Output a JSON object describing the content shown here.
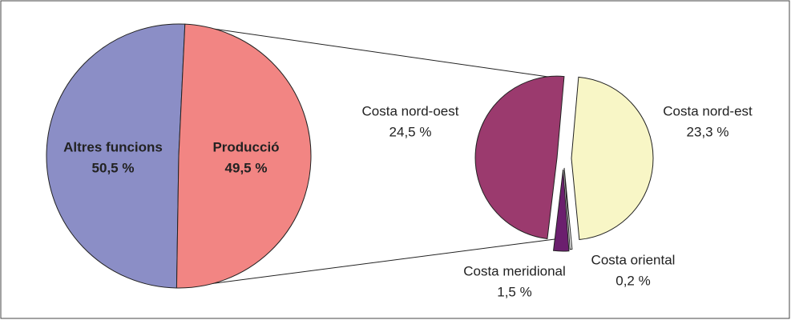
{
  "chart_data": [
    {
      "type": "pie",
      "categories": [
        "Altres funcions",
        "Producció"
      ],
      "values": [
        50.5,
        49.5
      ],
      "value_labels": [
        "50,5 %",
        "49,5 %"
      ],
      "colors": [
        "#8b8ec6",
        "#f28583"
      ]
    },
    {
      "type": "pie",
      "categories": [
        "Costa nord-est",
        "Costa oriental",
        "Costa meridional",
        "Costa nord-oest"
      ],
      "values": [
        23.3,
        0.2,
        1.5,
        24.5
      ],
      "value_labels": [
        "23,3 %",
        "0,2 %",
        "1,5 %",
        "24,5 %"
      ],
      "colors": [
        "#f8f6c6",
        "#ffffff",
        "#6b1f6e",
        "#9b3a6e"
      ]
    }
  ]
}
